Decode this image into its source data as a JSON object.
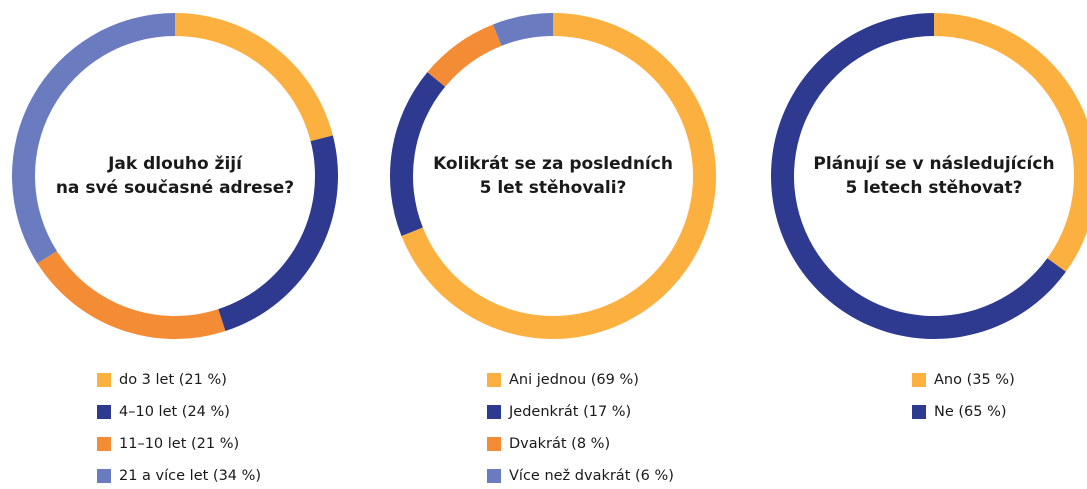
{
  "chart_data": [
    {
      "type": "donut",
      "title": [
        "Jak dlouho žijí",
        "na své současné adrese?"
      ],
      "categories": [
        "do 3 let",
        "4–10 let",
        "11–10 let",
        "21 a více let"
      ],
      "values": [
        21,
        24,
        21,
        34
      ],
      "value_labels": [
        "  (21 %)",
        "(24 %)",
        "(21 %)",
        "(34 %)"
      ],
      "colors": [
        "#fbb040",
        "#2e3a8f",
        "#f48b35",
        "#6a7bc0"
      ]
    },
    {
      "type": "donut",
      "title": [
        "Kolikrát se za posledních",
        "5 let stěhovali?"
      ],
      "categories": [
        "Ani jednou",
        "Jedenkrát",
        "Dvakrát",
        "Více než dvakrát"
      ],
      "values": [
        69,
        17,
        8,
        6
      ],
      "value_labels": [
        "(69 %)",
        "(17 %)",
        "(8 %)",
        "(6 %)"
      ],
      "colors": [
        "#fbb040",
        "#2e3a8f",
        "#f48b35",
        "#6a7bc0"
      ]
    },
    {
      "type": "donut",
      "title": [
        "Plánují se v následujících",
        "5 letech stěhovat?"
      ],
      "categories": [
        "Ano",
        "Ne"
      ],
      "values": [
        35,
        65
      ],
      "value_labels": [
        "(35 %)",
        "(65 %)"
      ],
      "colors": [
        "#fbb040",
        "#2e3a8f"
      ]
    }
  ]
}
